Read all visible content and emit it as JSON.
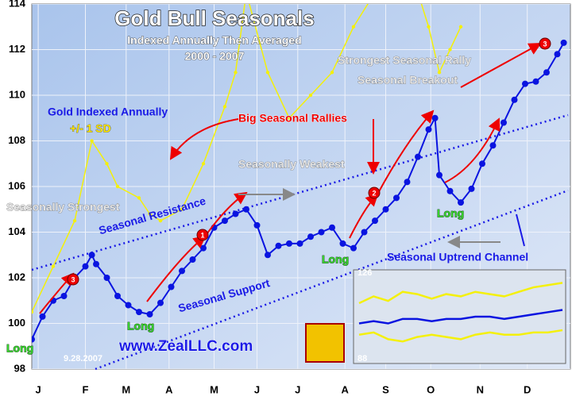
{
  "chart_data": {
    "type": "line",
    "title": "Gold Bull Seasonals",
    "subtitle": "Indexed Annually Then Averaged",
    "period": "2000 - 2007",
    "xlim": [
      0,
      250
    ],
    "ylim": [
      98,
      114
    ],
    "yticks": [
      98,
      100,
      102,
      104,
      106,
      108,
      110,
      112,
      114
    ],
    "xticks": [
      {
        "value": 3,
        "label": "J"
      },
      {
        "value": 25,
        "label": "F"
      },
      {
        "value": 44,
        "label": "M"
      },
      {
        "value": 64,
        "label": "A"
      },
      {
        "value": 85,
        "label": "M"
      },
      {
        "value": 105,
        "label": "J"
      },
      {
        "value": 124,
        "label": "J"
      },
      {
        "value": 146,
        "label": "A"
      },
      {
        "value": 165,
        "label": "S"
      },
      {
        "value": 186,
        "label": "O"
      },
      {
        "value": 209,
        "label": "N"
      },
      {
        "value": 231,
        "label": "D"
      }
    ],
    "grid": true,
    "series": [
      {
        "name": "Gold Indexed Annually",
        "color": "#0a14e0",
        "x": [
          0,
          5,
          10,
          15,
          20,
          25,
          28,
          30,
          35,
          40,
          45,
          50,
          55,
          60,
          65,
          70,
          75,
          80,
          85,
          90,
          95,
          100,
          105,
          110,
          115,
          120,
          125,
          130,
          135,
          140,
          145,
          150,
          155,
          160,
          165,
          170,
          175,
          180,
          185,
          188,
          190,
          195,
          200,
          205,
          210,
          215,
          220,
          225,
          230,
          235,
          240,
          245,
          248
        ],
        "values": [
          99.3,
          100.3,
          101.0,
          101.2,
          102.0,
          102.5,
          103.0,
          102.6,
          102.0,
          101.2,
          100.8,
          100.5,
          100.4,
          100.9,
          101.6,
          102.3,
          102.8,
          103.3,
          104.2,
          104.5,
          104.8,
          105.0,
          104.3,
          103.0,
          103.4,
          103.5,
          103.5,
          103.8,
          104.0,
          104.2,
          103.5,
          103.3,
          104.0,
          104.5,
          105.0,
          105.5,
          106.2,
          107.3,
          108.5,
          109.0,
          106.5,
          105.8,
          105.3,
          105.9,
          107.0,
          107.8,
          108.8,
          109.8,
          110.5,
          110.6,
          111.0,
          111.8,
          112.3
        ]
      },
      {
        "name": "+/- 1 SD",
        "color": "#f4f00a",
        "x": [
          0,
          10,
          20,
          28,
          35,
          40,
          50,
          55,
          60,
          70,
          80,
          90,
          95,
          100,
          110,
          120,
          130,
          140,
          150,
          160,
          170,
          180,
          185,
          190,
          195,
          200
        ],
        "values": [
          100.5,
          102.5,
          104.5,
          108.0,
          107.0,
          106.0,
          105.5,
          104.8,
          104.5,
          105.0,
          107.0,
          109.5,
          111.0,
          114.5,
          111.0,
          109.0,
          110.0,
          111.0,
          113.0,
          114.5,
          114.5,
          114.5,
          113.0,
          111.0,
          112.0,
          113.0
        ]
      }
    ],
    "inset": {
      "ylim": [
        88,
        126
      ],
      "ylabels": [
        "126",
        "88"
      ],
      "series": [
        {
          "color": "#0a14e0",
          "values": [
            104,
            105,
            104,
            106,
            106,
            105,
            106,
            106,
            107,
            107,
            106,
            107,
            108,
            109,
            110
          ]
        },
        {
          "color": "#f4f00a",
          "values": [
            113,
            116,
            114,
            118,
            117,
            115,
            117,
            116,
            118,
            117,
            116,
            118,
            120,
            121,
            122
          ]
        },
        {
          "color": "#f4f00a",
          "values": [
            99,
            100,
            97,
            96,
            98,
            99,
            98,
            97,
            99,
            100,
            99,
            99,
            100,
            100,
            101
          ]
        }
      ]
    },
    "annotations": [
      "Gold Indexed Annually",
      "+/- 1 SD",
      "Big Seasonal Rallies",
      "Seasonally Weakest",
      "Seasonally Strongest",
      "Seasonal Resistance",
      "Seasonal Support",
      "Seasonal Uptrend Channel",
      "Strongest Seasonal Rally",
      "Seasonal Breakout",
      "Long",
      "9.28.2007",
      "www.ZealLLC.com"
    ],
    "markers": [
      "3",
      "1",
      "2",
      "3"
    ]
  }
}
